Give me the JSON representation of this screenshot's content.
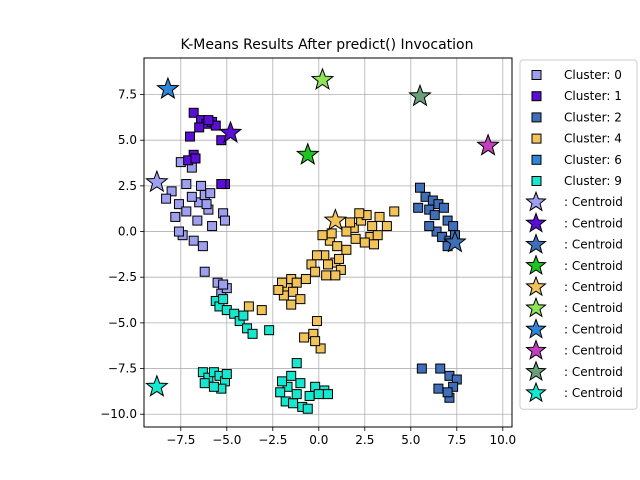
{
  "chart_data": {
    "type": "scatter",
    "title": "K-Means Results After predict() Invocation",
    "xlabel": "",
    "ylabel": "",
    "xlim": [
      -9.5,
      10.5
    ],
    "ylim": [
      -10.7,
      9.5
    ],
    "xticks": [
      -7.5,
      -5.0,
      -2.5,
      0.0,
      2.5,
      5.0,
      7.5,
      10.0
    ],
    "xtick_labels": [
      "−7.5",
      "−5.0",
      "−2.5",
      "0.0",
      "2.5",
      "5.0",
      "7.5",
      "10.0"
    ],
    "yticks": [
      -10.0,
      -7.5,
      -5.0,
      -2.5,
      0.0,
      2.5,
      5.0,
      7.5
    ],
    "ytick_labels": [
      "−10.0",
      "−7.5",
      "−5.0",
      "−2.5",
      "0.0",
      "2.5",
      "5.0",
      "7.5"
    ],
    "grid": true,
    "legend_position": "outside right",
    "series": [
      {
        "name": "Cluster: 0",
        "marker": "square",
        "color": "#9f9ff0",
        "points": [
          [
            -8.0,
            2.2
          ],
          [
            -8.3,
            1.8
          ],
          [
            -7.6,
            1.5
          ],
          [
            -7.2,
            1.1
          ],
          [
            -7.8,
            0.8
          ],
          [
            -6.5,
            1.6
          ],
          [
            -6.2,
            2.0
          ],
          [
            -6.0,
            1.2
          ],
          [
            -6.6,
            0.6
          ],
          [
            -5.8,
            0.3
          ],
          [
            -7.4,
            -0.2
          ],
          [
            -6.8,
            -0.5
          ],
          [
            -6.3,
            -0.8
          ],
          [
            -5.2,
            1.0
          ],
          [
            -5.1,
            0.6
          ],
          [
            -6.2,
            -2.2
          ],
          [
            -7.5,
            3.8
          ],
          [
            -6.9,
            3.5
          ],
          [
            -6.4,
            2.5
          ],
          [
            -5.9,
            2.1
          ],
          [
            -7.2,
            2.6
          ],
          [
            -7.6,
            0.0
          ],
          [
            -6.9,
            1.9
          ],
          [
            -6.1,
            1.5
          ],
          [
            -5.5,
            -2.8
          ],
          [
            -5.3,
            -3.4
          ],
          [
            -5.0,
            -3.1
          ],
          [
            -5.2,
            -2.9
          ]
        ]
      },
      {
        "name": "Cluster: 1",
        "marker": "square",
        "color": "#5b0fd6",
        "points": [
          [
            -6.8,
            6.5
          ],
          [
            -6.4,
            6.1
          ],
          [
            -6.1,
            5.9
          ],
          [
            -5.8,
            6.0
          ],
          [
            -5.6,
            5.8
          ],
          [
            -6.5,
            5.7
          ],
          [
            -7.0,
            5.2
          ],
          [
            -5.3,
            5.0
          ],
          [
            -6.8,
            4.2
          ],
          [
            -7.1,
            3.9
          ],
          [
            -6.7,
            4.0
          ],
          [
            -5.1,
            2.6
          ],
          [
            -5.3,
            2.6
          ],
          [
            -6.0,
            6.1
          ]
        ]
      },
      {
        "name": "Cluster: 2",
        "marker": "square",
        "color": "#3f6fb8",
        "points": [
          [
            5.5,
            2.4
          ],
          [
            5.8,
            1.9
          ],
          [
            6.2,
            1.7
          ],
          [
            6.5,
            1.5
          ],
          [
            6.8,
            1.3
          ],
          [
            5.4,
            1.3
          ],
          [
            6.0,
            1.2
          ],
          [
            6.3,
            0.9
          ],
          [
            7.0,
            0.6
          ],
          [
            7.3,
            0.3
          ],
          [
            6.4,
            0.0
          ],
          [
            6.7,
            -0.3
          ],
          [
            7.1,
            -0.5
          ],
          [
            7.4,
            -0.2
          ],
          [
            7.0,
            -0.8
          ],
          [
            6.0,
            0.3
          ],
          [
            5.6,
            -7.5
          ],
          [
            6.6,
            -7.5
          ],
          [
            7.1,
            -7.9
          ],
          [
            7.5,
            -8.1
          ],
          [
            7.3,
            -8.5
          ],
          [
            6.5,
            -8.6
          ],
          [
            7.1,
            -9.1
          ],
          [
            7.0,
            -8.8
          ]
        ]
      },
      {
        "name": "Cluster: 4",
        "marker": "square",
        "color": "#f2c35a",
        "points": [
          [
            0.6,
            -0.5
          ],
          [
            1.0,
            -0.8
          ],
          [
            1.5,
            -1.0
          ],
          [
            0.9,
            -1.7
          ],
          [
            1.2,
            -2.1
          ],
          [
            0.3,
            -1.3
          ],
          [
            0.5,
            -1.8
          ],
          [
            -0.1,
            -1.3
          ],
          [
            -0.4,
            -1.8
          ],
          [
            -0.2,
            -2.2
          ],
          [
            0.4,
            -2.4
          ],
          [
            0.9,
            -2.4
          ],
          [
            1.1,
            -1.5
          ],
          [
            1.9,
            0.2
          ],
          [
            2.3,
            0.6
          ],
          [
            2.6,
            0.9
          ],
          [
            2.9,
            0.3
          ],
          [
            2.8,
            -0.3
          ],
          [
            3.2,
            -0.2
          ],
          [
            3.7,
            0.3
          ],
          [
            4.1,
            1.1
          ],
          [
            2.0,
            -0.4
          ],
          [
            2.5,
            -0.6
          ],
          [
            3.0,
            -0.7
          ],
          [
            1.5,
            0.0
          ],
          [
            2.2,
            1.0
          ],
          [
            1.7,
            0.5
          ],
          [
            0.2,
            -0.2
          ],
          [
            0.7,
            -0.1
          ],
          [
            -1.5,
            -2.6
          ],
          [
            -1.2,
            -2.8
          ],
          [
            -1.7,
            -3.1
          ],
          [
            -1.4,
            -3.3
          ],
          [
            -1.9,
            -3.5
          ],
          [
            -1.0,
            -3.7
          ],
          [
            -1.5,
            -4.0
          ],
          [
            -2.0,
            -2.8
          ],
          [
            -2.2,
            -3.2
          ],
          [
            -0.7,
            -2.6
          ],
          [
            -0.1,
            -4.9
          ],
          [
            -0.3,
            -5.6
          ],
          [
            0.1,
            -6.4
          ],
          [
            -0.8,
            -5.8
          ],
          [
            -0.2,
            -6.0
          ],
          [
            -3.8,
            -4.1
          ],
          [
            -3.1,
            -4.3
          ],
          [
            3.3,
            0.8
          ]
        ]
      },
      {
        "name": "Cluster: 6",
        "marker": "square",
        "color": "#2f86d6",
        "points": []
      },
      {
        "name": "Cluster: 9",
        "marker": "square",
        "color": "#16e8d0",
        "points": [
          [
            -5.6,
            -3.8
          ],
          [
            -5.4,
            -4.1
          ],
          [
            -5.0,
            -4.3
          ],
          [
            -4.6,
            -4.5
          ],
          [
            -4.3,
            -4.9
          ],
          [
            -3.9,
            -5.3
          ],
          [
            -3.6,
            -5.6
          ],
          [
            -2.7,
            -5.4
          ],
          [
            -4.1,
            -4.6
          ],
          [
            -5.2,
            -3.7
          ],
          [
            -6.3,
            -7.7
          ],
          [
            -6.0,
            -8.0
          ],
          [
            -5.7,
            -7.7
          ],
          [
            -5.4,
            -7.9
          ],
          [
            -5.1,
            -8.2
          ],
          [
            -5.3,
            -8.6
          ],
          [
            -5.7,
            -8.5
          ],
          [
            -6.2,
            -8.3
          ],
          [
            -5.0,
            -7.8
          ],
          [
            -1.2,
            -7.2
          ],
          [
            -1.5,
            -7.9
          ],
          [
            -1.0,
            -8.3
          ],
          [
            -1.7,
            -8.5
          ],
          [
            -2.0,
            -8.2
          ],
          [
            -2.1,
            -8.8
          ],
          [
            -1.8,
            -9.3
          ],
          [
            -1.4,
            -9.4
          ],
          [
            -0.9,
            -9.6
          ],
          [
            -0.5,
            -9.0
          ],
          [
            -0.2,
            -8.5
          ],
          [
            0.3,
            -8.7
          ],
          [
            0.5,
            -8.9
          ],
          [
            0.0,
            -8.9
          ],
          [
            -0.6,
            -9.7
          ],
          [
            -1.2,
            -8.9
          ]
        ]
      }
    ],
    "centroids": {
      "label": ": Centroid",
      "marker": "star",
      "points": [
        {
          "x": -8.8,
          "y": 2.7,
          "color": "#9f9ff0"
        },
        {
          "x": -4.8,
          "y": 5.4,
          "color": "#5b0fd6"
        },
        {
          "x": 7.4,
          "y": -0.6,
          "color": "#3f6fb8"
        },
        {
          "x": -0.6,
          "y": 4.2,
          "color": "#1ec51e"
        },
        {
          "x": 0.9,
          "y": 0.6,
          "color": "#f2c35a"
        },
        {
          "x": 0.2,
          "y": 8.3,
          "color": "#8fe35a"
        },
        {
          "x": -8.2,
          "y": 7.8,
          "color": "#2f86d6"
        },
        {
          "x": 9.2,
          "y": 4.7,
          "color": "#c23fbd"
        },
        {
          "x": 5.5,
          "y": 7.4,
          "color": "#6aa079"
        },
        {
          "x": -8.8,
          "y": -8.5,
          "color": "#16e8d0"
        }
      ]
    }
  }
}
